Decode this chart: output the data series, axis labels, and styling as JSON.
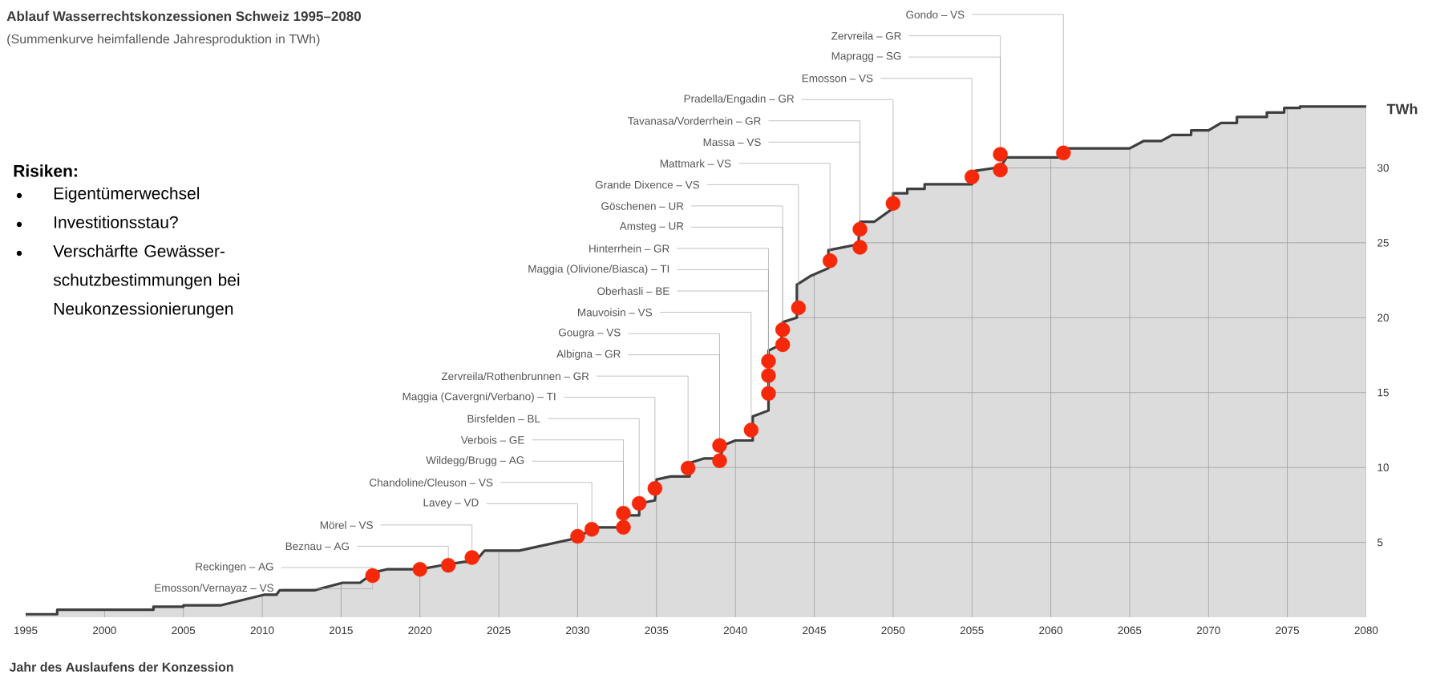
{
  "chart_data": {
    "type": "area",
    "title": "Ablauf Wasserrechtskonzessionen Schweiz 1995–2080",
    "subtitle": "(Summenkurve heimfallende Jahresproduktion in TWh)",
    "xlabel": "Jahr des Auslaufens der Konzession",
    "ylabel": "TWh",
    "xlim": [
      1995,
      2080
    ],
    "ylim": [
      0,
      35
    ],
    "xticks": [
      1995,
      2000,
      2005,
      2010,
      2015,
      2020,
      2025,
      2030,
      2035,
      2040,
      2045,
      2050,
      2055,
      2060,
      2065,
      2070,
      2075,
      2080
    ],
    "yticks": [
      5,
      10,
      15,
      20,
      25,
      30
    ],
    "grid": true,
    "series": [
      {
        "color": "#dcdcdc",
        "x": [
          1995,
          1997,
          1997,
          2003.1,
          2003.1,
          2005,
          2005,
          2007.4,
          2010.1,
          2010.9,
          2011.1,
          2013.3,
          2015.1,
          2016.2,
          2017.1,
          2017.9,
          2020,
          2021.3,
          2022.8,
          2023.5,
          2024.1,
          2026.3,
          2030,
          2030.9,
          2031,
          2032.9,
          2032.9,
          2033.9,
          2033.9,
          2034.9,
          2035,
          2035.9,
          2037.1,
          2037.1,
          2038,
          2039,
          2039.3,
          2040,
          2041.1,
          2041.1,
          2042.1,
          2042.1,
          2042.9,
          2043,
          2043.9,
          2043.9,
          2044.8,
          2045.9,
          2045.9,
          2047.8,
          2047.9,
          2048.8,
          2050,
          2050,
          2050.9,
          2050.9,
          2052,
          2052,
          2055,
          2055.2,
          2056.8,
          2057.2,
          2060.8,
          2060.8,
          2065,
          2065.9,
          2067,
          2067.7,
          2068.9,
          2068.9,
          2070,
          2070.8,
          2071.8,
          2071.8,
          2073.7,
          2073.7,
          2074.8,
          2074.8,
          2075.8,
          2075.8,
          2080
        ],
        "values": [
          0.2,
          0.2,
          0.5,
          0.5,
          0.7,
          0.7,
          0.8,
          0.8,
          1.5,
          1.5,
          1.8,
          1.8,
          2.3,
          2.3,
          3.0,
          3.2,
          3.2,
          3.45,
          3.7,
          3.7,
          4.45,
          4.45,
          5.3,
          5.9,
          6.0,
          6.0,
          6.8,
          6.8,
          7.6,
          7.8,
          9.2,
          9.4,
          9.4,
          10.3,
          10.6,
          10.6,
          11.5,
          11.8,
          11.8,
          13.4,
          13.8,
          17.8,
          18.2,
          19.7,
          20.0,
          22.2,
          22.8,
          23.3,
          24.5,
          24.9,
          26.4,
          26.4,
          27.3,
          28.3,
          28.3,
          28.6,
          28.6,
          28.9,
          28.9,
          29.8,
          30.05,
          30.7,
          30.7,
          31.3,
          31.3,
          31.8,
          31.8,
          32.2,
          32.2,
          32.5,
          32.5,
          33.0,
          33.0,
          33.4,
          33.4,
          33.7,
          33.7,
          34.0,
          34.0,
          34.1,
          34.1
        ]
      },
      {
        "type": "scatter",
        "color": "#f5290a",
        "marker": "circle",
        "x": [
          2017,
          2020,
          2021.8,
          2023.3,
          2030,
          2030.9,
          2032.9,
          2032.9,
          2033.9,
          2034.9,
          2037,
          2039,
          2039,
          2041,
          2042.1,
          2042.1,
          2042.1,
          2043,
          2043,
          2044,
          2046,
          2047.9,
          2047.9,
          2050,
          2055,
          2056.8,
          2056.8,
          2060.8
        ],
        "values": [
          2.78,
          3.2,
          3.47,
          3.98,
          5.4,
          5.87,
          6.0,
          6.94,
          7.6,
          8.6,
          9.95,
          10.45,
          11.46,
          12.5,
          14.94,
          16.14,
          17.1,
          18.2,
          19.2,
          20.66,
          23.8,
          24.7,
          25.9,
          27.63,
          29.4,
          29.86,
          30.9,
          31.0
        ]
      }
    ],
    "annotations": [
      "Risiken:",
      "Eigentümerwechsel",
      "Investitionsstau?",
      "Verschärfte Gewässer-schutzbestimmungen bei Neukonzessionierungen",
      {
        "text": "Emosson/Vernayaz – VS",
        "x": 2017,
        "y": 2.78
      },
      {
        "text": "Reckingen – AG",
        "x": 2017,
        "y": 2.78
      },
      {
        "text": "Beznau – AG",
        "x": 2021.8,
        "y": 3.47
      },
      {
        "text": "Mörel – VS",
        "x": 2023.3,
        "y": 3.98
      },
      {
        "text": "Lavey – VD",
        "x": 2030,
        "y": 5.4
      },
      {
        "text": "Chandoline/Cleuson – VS",
        "x": 2030.9,
        "y": 5.87
      },
      {
        "text": "Wildegg/Brugg – AG",
        "x": 2032.9,
        "y": 6.0
      },
      {
        "text": "Verbois – GE",
        "x": 2032.9,
        "y": 6.94
      },
      {
        "text": "Birsfelden – BL",
        "x": 2033.9,
        "y": 7.6
      },
      {
        "text": "Maggia (Cavergni/Verbano) – TI",
        "x": 2034.9,
        "y": 8.6
      },
      {
        "text": "Zervreila/Rothenbrunnen – GR",
        "x": 2037,
        "y": 9.95
      },
      {
        "text": "Albigna – GR",
        "x": 2039,
        "y": 10.45
      },
      {
        "text": "Gougra – VS",
        "x": 2039,
        "y": 11.46
      },
      {
        "text": "Mauvoisin – VS",
        "x": 2041,
        "y": 12.5
      },
      {
        "text": "Oberhasli – BE",
        "x": 2042.1,
        "y": 14.94
      },
      {
        "text": "Maggia (Olivione/Biasca) – TI",
        "x": 2042.1,
        "y": 16.14
      },
      {
        "text": "Hinterrhein – GR",
        "x": 2042.1,
        "y": 17.1
      },
      {
        "text": "Amsteg – UR",
        "x": 2043,
        "y": 18.2
      },
      {
        "text": "Göschenen – UR",
        "x": 2043,
        "y": 19.2
      },
      {
        "text": "Grande Dixence – VS",
        "x": 2044,
        "y": 20.66
      },
      {
        "text": "Mattmark – VS",
        "x": 2046,
        "y": 23.8
      },
      {
        "text": "Massa – VS",
        "x": 2047.9,
        "y": 24.7
      },
      {
        "text": "Tavanasa/Vorderrhein – GR",
        "x": 2047.9,
        "y": 25.9
      },
      {
        "text": "Pradella/Engadin – GR",
        "x": 2050,
        "y": 27.63
      },
      {
        "text": "Emosson – VS",
        "x": 2055,
        "y": 29.4
      },
      {
        "text": "Mapragg – SG",
        "x": 2056.8,
        "y": 29.86
      },
      {
        "text": "Zervreila – GR",
        "x": 2056.8,
        "y": 30.9
      },
      {
        "text": "Gondo – VS",
        "x": 2060.8,
        "y": 31.0
      }
    ]
  }
}
